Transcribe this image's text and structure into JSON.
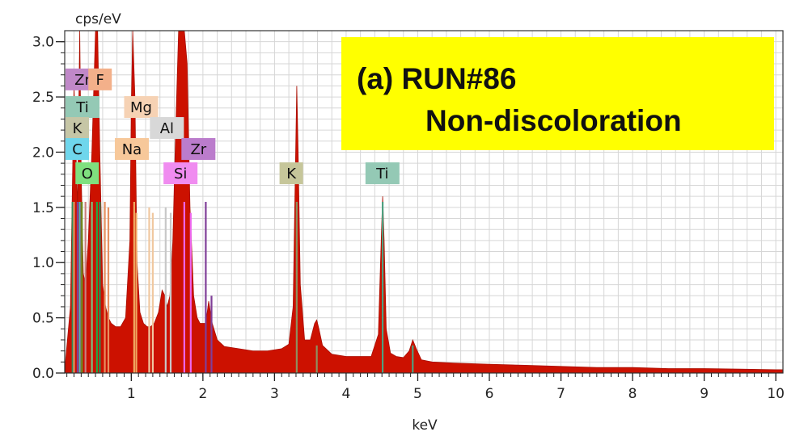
{
  "chart_data": {
    "type": "area",
    "ylabel": "cps/eV",
    "xlabel": "keV",
    "xlim": [
      0.07,
      10.1
    ],
    "ylim": [
      0,
      3.1
    ],
    "x_ticks": [
      1,
      2,
      3,
      4,
      5,
      6,
      7,
      8,
      9,
      10
    ],
    "y_ticks": [
      0.0,
      0.5,
      1.0,
      1.5,
      2.0,
      2.5,
      3.0
    ],
    "y_tick_labels": [
      "0.0",
      "0.5",
      "1.0",
      "1.5",
      "2.0",
      "2.5",
      "3.0"
    ],
    "grid": true,
    "fill_color": "#cc1100",
    "title_lines": [
      "(a) RUN#86",
      "Non-discoloration"
    ],
    "title_box_color": "#ffff00",
    "spectrum": {
      "x": [
        0.08,
        0.15,
        0.2,
        0.25,
        0.28,
        0.3,
        0.33,
        0.36,
        0.4,
        0.45,
        0.5,
        0.53,
        0.56,
        0.6,
        0.64,
        0.68,
        0.72,
        0.78,
        0.85,
        0.92,
        0.98,
        1.0,
        1.02,
        1.05,
        1.08,
        1.12,
        1.17,
        1.22,
        1.27,
        1.32,
        1.38,
        1.43,
        1.47,
        1.5,
        1.54,
        1.58,
        1.62,
        1.66,
        1.7,
        1.74,
        1.78,
        1.82,
        1.87,
        1.92,
        1.96,
        2.0,
        2.04,
        2.08,
        2.13,
        2.2,
        2.3,
        2.5,
        2.7,
        2.9,
        3.1,
        3.2,
        3.26,
        3.29,
        3.31,
        3.33,
        3.36,
        3.42,
        3.5,
        3.56,
        3.59,
        3.62,
        3.67,
        3.8,
        4.0,
        4.2,
        4.35,
        4.45,
        4.49,
        4.51,
        4.53,
        4.56,
        4.62,
        4.7,
        4.8,
        4.88,
        4.93,
        4.98,
        5.05,
        5.2,
        5.5,
        6.0,
        6.5,
        7.0,
        7.5,
        8.0,
        8.5,
        9.0,
        9.5,
        10.0,
        10.1
      ],
      "y": [
        0.1,
        0.6,
        2.6,
        1.5,
        3.1,
        1.8,
        0.9,
        0.8,
        1.2,
        2.0,
        3.1,
        3.1,
        2.0,
        0.8,
        0.6,
        0.5,
        0.45,
        0.42,
        0.42,
        0.5,
        1.2,
        2.4,
        3.1,
        2.5,
        1.0,
        0.55,
        0.45,
        0.42,
        0.42,
        0.45,
        0.55,
        0.75,
        0.7,
        0.6,
        0.7,
        1.2,
        2.2,
        3.1,
        3.1,
        3.1,
        2.8,
        1.5,
        0.7,
        0.5,
        0.45,
        0.45,
        0.45,
        0.65,
        0.45,
        0.3,
        0.24,
        0.22,
        0.2,
        0.2,
        0.22,
        0.26,
        0.6,
        1.8,
        2.6,
        2.0,
        0.8,
        0.3,
        0.3,
        0.45,
        0.48,
        0.4,
        0.25,
        0.17,
        0.15,
        0.15,
        0.15,
        0.35,
        1.2,
        1.6,
        1.2,
        0.4,
        0.18,
        0.15,
        0.14,
        0.2,
        0.3,
        0.22,
        0.12,
        0.1,
        0.09,
        0.08,
        0.07,
        0.06,
        0.05,
        0.05,
        0.04,
        0.04,
        0.035,
        0.03,
        0.03
      ]
    },
    "peak_markers": [
      {
        "x": 0.18,
        "y": 1.55,
        "color": "#2e8b57"
      },
      {
        "x": 0.2,
        "y": 1.55,
        "color": "#e69060"
      },
      {
        "x": 0.25,
        "y": 1.55,
        "color": "#7f3f98"
      },
      {
        "x": 0.28,
        "y": 1.55,
        "color": "#4db8b8"
      },
      {
        "x": 0.31,
        "y": 1.55,
        "color": "#6b8e23"
      },
      {
        "x": 0.36,
        "y": 1.55,
        "color": "#c98080"
      },
      {
        "x": 0.45,
        "y": 1.55,
        "color": "#7fbf7f"
      },
      {
        "x": 0.52,
        "y": 1.55,
        "color": "#22aa44"
      },
      {
        "x": 0.56,
        "y": 1.55,
        "color": "#2e8b57"
      },
      {
        "x": 0.63,
        "y": 1.55,
        "color": "#e69060"
      },
      {
        "x": 0.68,
        "y": 1.5,
        "color": "#e69060"
      },
      {
        "x": 1.04,
        "y": 1.55,
        "color": "#f0a860"
      },
      {
        "x": 1.07,
        "y": 1.45,
        "color": "#f0a860"
      },
      {
        "x": 1.25,
        "y": 1.5,
        "color": "#f0c8a0"
      },
      {
        "x": 1.3,
        "y": 1.45,
        "color": "#f0c8a0"
      },
      {
        "x": 1.48,
        "y": 1.5,
        "color": "#c8c8c8"
      },
      {
        "x": 1.55,
        "y": 1.45,
        "color": "#c8c8c8"
      },
      {
        "x": 1.74,
        "y": 1.55,
        "color": "#ee66ee"
      },
      {
        "x": 1.83,
        "y": 1.45,
        "color": "#ee66ee"
      },
      {
        "x": 2.04,
        "y": 1.55,
        "color": "#7f3f98"
      },
      {
        "x": 2.12,
        "y": 0.7,
        "color": "#7f3f98"
      },
      {
        "x": 3.31,
        "y": 1.55,
        "color": "#8f8f5f"
      },
      {
        "x": 3.59,
        "y": 0.25,
        "color": "#8f8f5f"
      },
      {
        "x": 4.51,
        "y": 1.55,
        "color": "#4f9f7f"
      },
      {
        "x": 4.93,
        "y": 0.25,
        "color": "#4f9f7f"
      }
    ],
    "element_labels": [
      {
        "text": "Zr",
        "x": 0.07,
        "y": 2.56,
        "color": "#c088c8"
      },
      {
        "text": "F",
        "x": 0.4,
        "y": 2.56,
        "color": "#f3b08a"
      },
      {
        "text": "Ti",
        "x": 0.08,
        "y": 2.31,
        "color": "#94c9b5"
      },
      {
        "text": "Mg",
        "x": 0.9,
        "y": 2.31,
        "color": "#f6d2b4"
      },
      {
        "text": "K",
        "x": 0.08,
        "y": 2.12,
        "color": "#c6c6a6"
      },
      {
        "text": "Al",
        "x": 1.26,
        "y": 2.12,
        "color": "#d8d8d8"
      },
      {
        "text": "C",
        "x": 0.08,
        "y": 1.93,
        "color": "#6fd6ec"
      },
      {
        "text": "Na",
        "x": 0.77,
        "y": 1.93,
        "color": "#f7c89a"
      },
      {
        "text": "Zr",
        "x": 1.7,
        "y": 1.93,
        "color": "#bb7ccc"
      },
      {
        "text": "O",
        "x": 0.22,
        "y": 1.71,
        "color": "#7fe07f"
      },
      {
        "text": "Si",
        "x": 1.45,
        "y": 1.71,
        "color": "#f08cf0"
      },
      {
        "text": "K",
        "x": 3.07,
        "y": 1.71,
        "color": "#c6c69a"
      },
      {
        "text": "Ti",
        "x": 4.27,
        "y": 1.71,
        "color": "#94c9b5"
      }
    ]
  }
}
